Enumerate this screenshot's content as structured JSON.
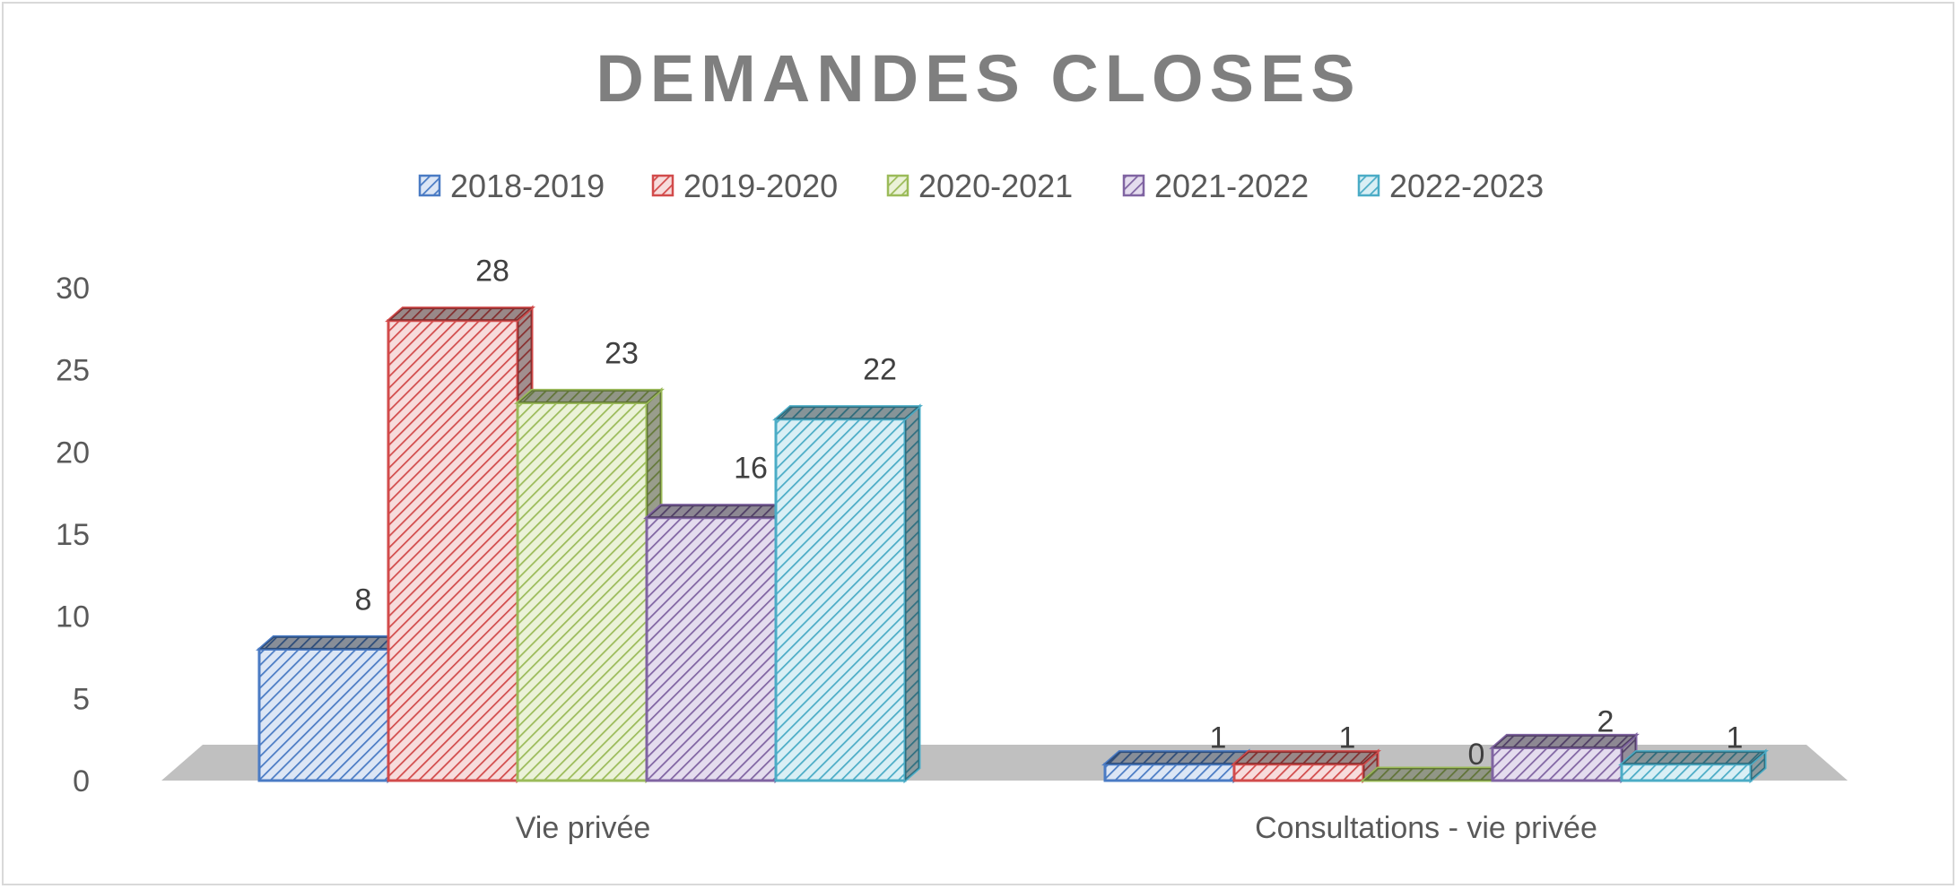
{
  "chart_data": {
    "type": "bar",
    "title": "DEMANDES CLOSES",
    "categories": [
      "Vie privée",
      "Consultations - vie privée"
    ],
    "series": [
      {
        "name": "2018-2019",
        "values": [
          8,
          1
        ],
        "color": "#4a7bc4",
        "fill": "#dce6f5"
      },
      {
        "name": "2019-2020",
        "values": [
          28,
          1
        ],
        "color": "#d24b4b",
        "fill": "#f7dcdc"
      },
      {
        "name": "2020-2021",
        "values": [
          23,
          0
        ],
        "color": "#9bbb59",
        "fill": "#ebf2d8"
      },
      {
        "name": "2021-2022",
        "values": [
          16,
          2
        ],
        "color": "#8064a2",
        "fill": "#e4dcee"
      },
      {
        "name": "2022-2023",
        "values": [
          22,
          1
        ],
        "color": "#4bacc6",
        "fill": "#d9eff5"
      }
    ],
    "ylim": [
      0,
      30
    ],
    "yticks": [
      0,
      5,
      10,
      15,
      20,
      25,
      30
    ],
    "xlabel": "",
    "ylabel": "",
    "grid": false,
    "legend_position": "top",
    "floor_color": "#c0c0c0"
  }
}
